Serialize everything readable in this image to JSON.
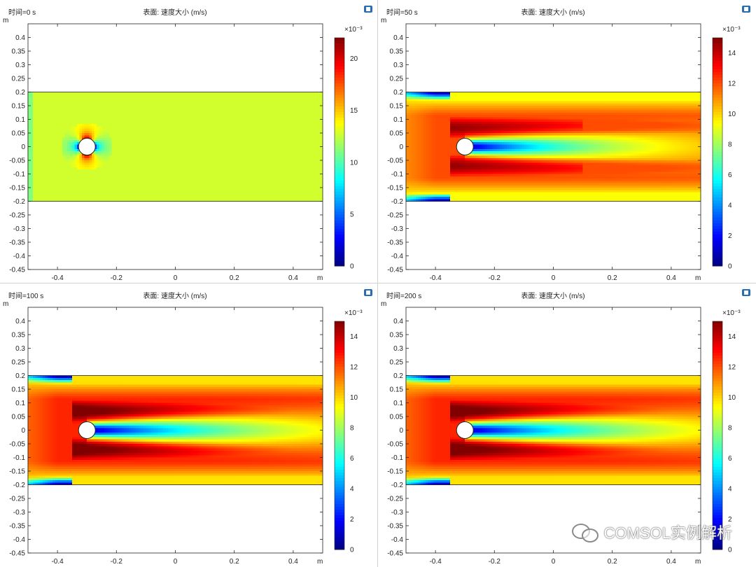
{
  "watermark": {
    "icon": "wechat-icon",
    "text": "COMSOL实例解析"
  },
  "chart_data": [
    {
      "type": "heatmap",
      "time_label": "时间=0 s",
      "title": "表面: 速度大小 (m/s)",
      "xlabel": "m",
      "ylabel": "m",
      "xlim": [
        -0.5,
        0.5
      ],
      "ylim": [
        -0.45,
        0.45
      ],
      "x_ticks": [
        "-0.4",
        "-0.2",
        "0",
        "0.2",
        "0.4"
      ],
      "y_ticks": [
        "0.4",
        "0.35",
        "0.3",
        "0.25",
        "0.2",
        "0.15",
        "0.1",
        "0.05",
        "0",
        "-0.05",
        "-0.1",
        "-0.15",
        "-0.2",
        "-0.25",
        "-0.3",
        "-0.35",
        "-0.4",
        "-0.45"
      ],
      "domain": {
        "x": [
          -0.5,
          0.5
        ],
        "y": [
          -0.2,
          0.2
        ]
      },
      "cylinder": {
        "cx": -0.3,
        "cy": 0,
        "r": 0.025
      },
      "colorbar": {
        "exponent": "×10⁻³",
        "min": 0,
        "max": 22,
        "ticks": [
          "20",
          "15",
          "10",
          "5",
          "0"
        ]
      },
      "field": "initial"
    },
    {
      "type": "heatmap",
      "time_label": "时间=50 s",
      "title": "表面: 速度大小 (m/s)",
      "xlabel": "m",
      "ylabel": "m",
      "xlim": [
        -0.5,
        0.5
      ],
      "ylim": [
        -0.45,
        0.45
      ],
      "x_ticks": [
        "-0.4",
        "-0.2",
        "0",
        "0.2",
        "0.4"
      ],
      "y_ticks": [
        "0.4",
        "0.35",
        "0.3",
        "0.25",
        "0.2",
        "0.15",
        "0.1",
        "0.05",
        "0",
        "-0.05",
        "-0.1",
        "-0.15",
        "-0.2",
        "-0.25",
        "-0.3",
        "-0.35",
        "-0.4",
        "-0.45"
      ],
      "domain": {
        "x": [
          -0.5,
          0.5
        ],
        "y": [
          -0.2,
          0.2
        ]
      },
      "cylinder": {
        "cx": -0.3,
        "cy": 0,
        "r": 0.025
      },
      "colorbar": {
        "exponent": "×10⁻³",
        "min": 0,
        "max": 15,
        "ticks": [
          "14",
          "12",
          "10",
          "8",
          "6",
          "4",
          "2",
          "0"
        ]
      },
      "field": "developing"
    },
    {
      "type": "heatmap",
      "time_label": "时间=100 s",
      "title": "表面: 速度大小 (m/s)",
      "xlabel": "m",
      "ylabel": "m",
      "xlim": [
        -0.5,
        0.5
      ],
      "ylim": [
        -0.45,
        0.45
      ],
      "x_ticks": [
        "-0.4",
        "-0.2",
        "0",
        "0.2",
        "0.4"
      ],
      "y_ticks": [
        "0.4",
        "0.35",
        "0.3",
        "0.25",
        "0.2",
        "0.15",
        "0.1",
        "0.05",
        "0",
        "-0.05",
        "-0.1",
        "-0.15",
        "-0.2",
        "-0.25",
        "-0.3",
        "-0.35",
        "-0.4",
        "-0.45"
      ],
      "domain": {
        "x": [
          -0.5,
          0.5
        ],
        "y": [
          -0.2,
          0.2
        ]
      },
      "cylinder": {
        "cx": -0.3,
        "cy": 0,
        "r": 0.025
      },
      "colorbar": {
        "exponent": "×10⁻³",
        "min": 0,
        "max": 15,
        "ticks": [
          "14",
          "12",
          "10",
          "8",
          "6",
          "4",
          "2",
          "0"
        ]
      },
      "field": "steady"
    },
    {
      "type": "heatmap",
      "time_label": "时间=200 s",
      "title": "表面: 速度大小 (m/s)",
      "xlabel": "m",
      "ylabel": "m",
      "xlim": [
        -0.5,
        0.5
      ],
      "ylim": [
        -0.45,
        0.45
      ],
      "x_ticks": [
        "-0.4",
        "-0.2",
        "0",
        "0.2",
        "0.4"
      ],
      "y_ticks": [
        "0.4",
        "0.35",
        "0.3",
        "0.25",
        "0.2",
        "0.15",
        "0.1",
        "0.05",
        "0",
        "-0.05",
        "-0.1",
        "-0.15",
        "-0.2",
        "-0.25",
        "-0.3",
        "-0.35",
        "-0.4",
        "-0.45"
      ],
      "domain": {
        "x": [
          -0.5,
          0.5
        ],
        "y": [
          -0.2,
          0.2
        ]
      },
      "cylinder": {
        "cx": -0.3,
        "cy": 0,
        "r": 0.025
      },
      "colorbar": {
        "exponent": "×10⁻³",
        "min": 0,
        "max": 15,
        "ticks": [
          "14",
          "12",
          "10",
          "8",
          "6",
          "4",
          "2",
          "0"
        ]
      },
      "field": "steady"
    }
  ]
}
